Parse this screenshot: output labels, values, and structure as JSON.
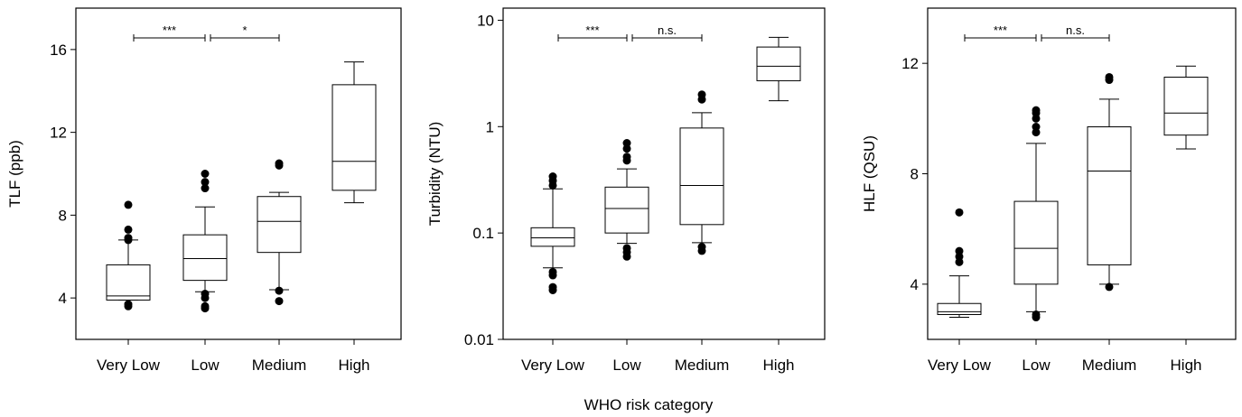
{
  "figure": {
    "shared_xlabel": "WHO risk category"
  },
  "chart_data": [
    {
      "type": "box",
      "ylabel": "TLF (ppb)",
      "yscale": "linear",
      "ylim": [
        2.0,
        18.0
      ],
      "yticks": [
        4,
        8,
        12,
        16
      ],
      "yticklabels": [
        "4",
        "8",
        "12",
        "16"
      ],
      "categories": [
        "Very Low",
        "Low",
        "Medium",
        "High"
      ],
      "boxes": [
        {
          "whislo": 3.9,
          "q1": 3.9,
          "med": 4.1,
          "q3": 5.6,
          "whishi": 6.8,
          "fliers": [
            3.6,
            3.7,
            6.8,
            6.9,
            7.3,
            8.5
          ]
        },
        {
          "whislo": 4.3,
          "q1": 4.85,
          "med": 5.9,
          "q3": 7.05,
          "whishi": 8.4,
          "fliers": [
            3.5,
            3.6,
            4.0,
            4.2,
            9.3,
            9.6,
            10.0
          ]
        },
        {
          "whislo": 4.4,
          "q1": 6.2,
          "med": 7.7,
          "q3": 8.9,
          "whishi": 9.1,
          "fliers": [
            3.85,
            4.35,
            10.4,
            10.5
          ]
        },
        {
          "whislo": 8.6,
          "q1": 9.2,
          "med": 10.6,
          "q3": 14.3,
          "whishi": 15.4,
          "fliers": []
        }
      ],
      "significance": [
        {
          "from": 0,
          "to": 1,
          "label": "***"
        },
        {
          "from": 1,
          "to": 2,
          "label": "*"
        }
      ]
    },
    {
      "type": "box",
      "ylabel": "Turbidity (NTU)",
      "yscale": "log",
      "ylim": [
        0.01,
        13.0
      ],
      "yticks": [
        0.01,
        0.1,
        1,
        10
      ],
      "yticklabels": [
        "0.01",
        "0.1",
        "1",
        "10"
      ],
      "categories": [
        "Very Low",
        "Low",
        "Medium",
        "High"
      ],
      "boxes": [
        {
          "whislo": 0.047,
          "q1": 0.075,
          "med": 0.09,
          "q3": 0.112,
          "whishi": 0.26,
          "fliers": [
            0.029,
            0.031,
            0.04,
            0.043,
            0.28,
            0.31,
            0.34
          ]
        },
        {
          "whislo": 0.08,
          "q1": 0.1,
          "med": 0.17,
          "q3": 0.27,
          "whishi": 0.4,
          "fliers": [
            0.06,
            0.066,
            0.072,
            0.48,
            0.52,
            0.62,
            0.7
          ]
        },
        {
          "whislo": 0.081,
          "q1": 0.12,
          "med": 0.28,
          "q3": 0.97,
          "whishi": 1.35,
          "fliers": [
            0.068,
            0.074,
            1.8,
            2.0
          ]
        },
        {
          "whislo": 1.75,
          "q1": 2.7,
          "med": 3.7,
          "q3": 5.6,
          "whishi": 6.9,
          "fliers": []
        }
      ],
      "significance": [
        {
          "from": 0,
          "to": 1,
          "label": "***"
        },
        {
          "from": 1,
          "to": 2,
          "label": "n.s."
        }
      ]
    },
    {
      "type": "box",
      "ylabel": "HLF (QSU)",
      "yscale": "linear",
      "ylim": [
        2.0,
        14.0
      ],
      "yticks": [
        4,
        8,
        12
      ],
      "yticklabels": [
        "4",
        "8",
        "12"
      ],
      "categories": [
        "Very Low",
        "Low",
        "Medium",
        "High"
      ],
      "boxes": [
        {
          "whislo": 2.8,
          "q1": 2.9,
          "med": 3.0,
          "q3": 3.3,
          "whishi": 4.3,
          "fliers": [
            4.8,
            5.0,
            5.2,
            6.6
          ]
        },
        {
          "whislo": 3.0,
          "q1": 4.0,
          "med": 5.3,
          "q3": 7.0,
          "whishi": 9.1,
          "fliers": [
            2.8,
            2.9,
            9.5,
            9.7,
            10.0,
            10.2,
            10.3
          ]
        },
        {
          "whislo": 4.0,
          "q1": 4.7,
          "med": 8.1,
          "q3": 9.7,
          "whishi": 10.7,
          "fliers": [
            3.9,
            11.4,
            11.5
          ]
        },
        {
          "whislo": 8.9,
          "q1": 9.4,
          "med": 10.2,
          "q3": 11.5,
          "whishi": 11.9,
          "fliers": []
        }
      ],
      "significance": [
        {
          "from": 0,
          "to": 1,
          "label": "***"
        },
        {
          "from": 1,
          "to": 2,
          "label": "n.s."
        }
      ]
    }
  ]
}
